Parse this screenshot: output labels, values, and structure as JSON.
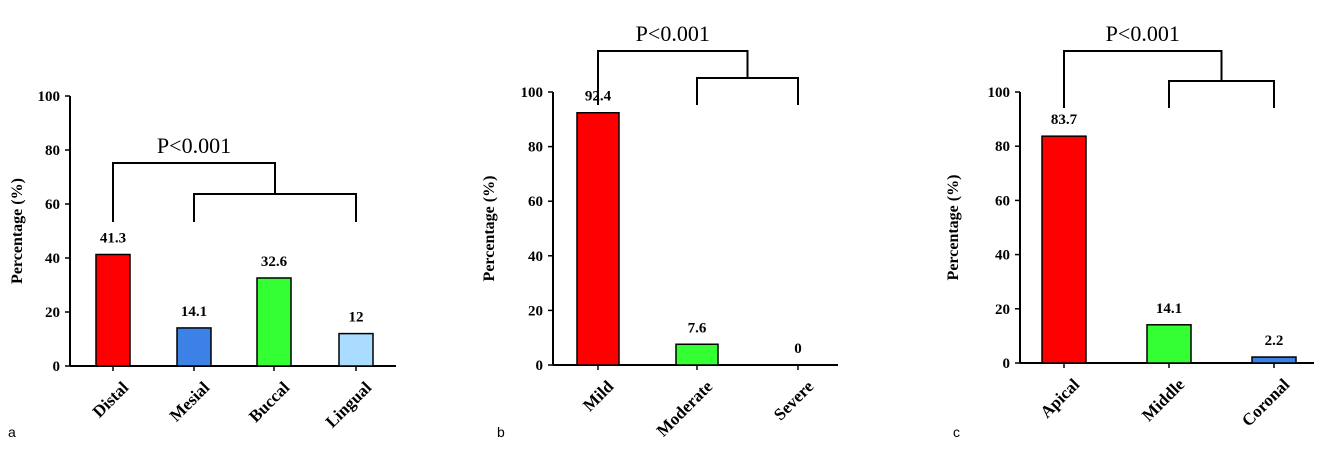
{
  "chart_data": [
    {
      "type": "bar",
      "panel_label": "a",
      "ylabel": "Percentage (%)",
      "ylim": [
        0,
        100
      ],
      "yticks": [
        "0",
        "20",
        "40",
        "60",
        "80",
        "100"
      ],
      "categories": [
        "Distal",
        "Mesial",
        "Buccal",
        "Lingual"
      ],
      "values": [
        41.3,
        14.1,
        32.6,
        12
      ],
      "value_labels": [
        "41.3",
        "14.1",
        "32.6",
        "12"
      ],
      "colors": [
        "#ff0000",
        "#3c82e6",
        "#33ff33",
        "#aadcff"
      ],
      "significance": {
        "label": "P<0.001",
        "left_index": 0,
        "right_group": [
          1,
          3
        ],
        "mid_index": 2
      }
    },
    {
      "type": "bar",
      "panel_label": "b",
      "ylabel": "Percentage (%)",
      "ylim": [
        0,
        100
      ],
      "yticks": [
        "0",
        "20",
        "40",
        "60",
        "80",
        "100"
      ],
      "categories": [
        "Mild",
        "Moderate",
        "Severe"
      ],
      "values": [
        92.4,
        7.6,
        0
      ],
      "value_labels": [
        "92.4",
        "7.6",
        "0"
      ],
      "colors": [
        "#ff0000",
        "#33ff33",
        "#aadcff"
      ],
      "significance": {
        "label": "P<0.001",
        "left_index": 0,
        "right_group": [
          1,
          2
        ]
      }
    },
    {
      "type": "bar",
      "panel_label": "c",
      "ylabel": "Percentage (%)",
      "ylim": [
        0,
        100
      ],
      "yticks": [
        "0",
        "20",
        "40",
        "60",
        "80",
        "100"
      ],
      "categories": [
        "Apical",
        "Middle",
        "Coronal"
      ],
      "values": [
        83.7,
        14.1,
        2.2
      ],
      "value_labels": [
        "83.7",
        "14.1",
        "2.2"
      ],
      "colors": [
        "#ff0000",
        "#33ff33",
        "#3c82e6"
      ],
      "significance": {
        "label": "P<0.001",
        "left_index": 0,
        "right_group": [
          1,
          2
        ]
      }
    }
  ]
}
